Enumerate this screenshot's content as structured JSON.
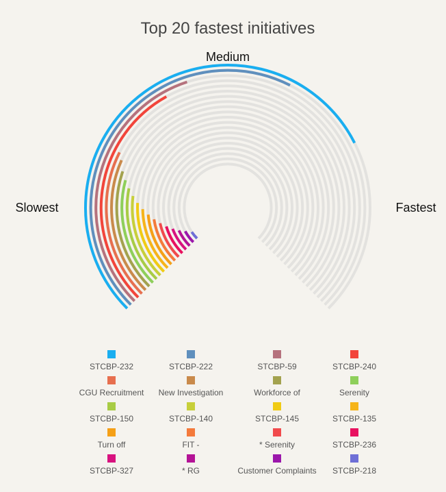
{
  "chart_data": {
    "type": "radial-bar",
    "title": "Top 20 fastest initiatives",
    "scale_labels": {
      "left": "Slowest",
      "top": "Medium",
      "right": "Fastest"
    },
    "scale_range": [
      0,
      270
    ],
    "track_color": "#e3e2df",
    "series": [
      {
        "name": "STCBP-232",
        "value": 198,
        "color": "#1aaef0"
      },
      {
        "name": "STCBP-222",
        "value": 162,
        "color": "#5f8fbd"
      },
      {
        "name": "STCBP-59",
        "value": 117,
        "color": "#b5727d"
      },
      {
        "name": "STCBP-240",
        "value": 106,
        "color": "#f2453b"
      },
      {
        "name": "CGU Recruitment",
        "value": 72,
        "color": "#e76f4e"
      },
      {
        "name": "New Investigation",
        "value": 69,
        "color": "#c98a4b"
      },
      {
        "name": "Workforce of",
        "value": 64,
        "color": "#a3a24e"
      },
      {
        "name": "Serenity",
        "value": 60,
        "color": "#8ecf5a"
      },
      {
        "name": "STCBP-150",
        "value": 56,
        "color": "#a8cc45"
      },
      {
        "name": "STCBP-140",
        "value": 52,
        "color": "#c7cf3a"
      },
      {
        "name": "STCBP-145",
        "value": 48,
        "color": "#f0cb14"
      },
      {
        "name": "STCBP-135",
        "value": 44,
        "color": "#f6b419"
      },
      {
        "name": "Turn off",
        "value": 40,
        "color": "#f5a017"
      },
      {
        "name": "FIT -",
        "value": 36,
        "color": "#f47a3b"
      },
      {
        "name": "* Serenity",
        "value": 32,
        "color": "#f14a4c"
      },
      {
        "name": "STCBP-236",
        "value": 28,
        "color": "#e8115f"
      },
      {
        "name": "STCBP-327",
        "value": 24,
        "color": "#d8127f"
      },
      {
        "name": "* RG",
        "value": 20,
        "color": "#b41396"
      },
      {
        "name": "Customer Complaints",
        "value": 16,
        "color": "#9b17ab"
      },
      {
        "name": "STCBP-218",
        "value": 11,
        "color": "#6e6fd6"
      }
    ]
  }
}
